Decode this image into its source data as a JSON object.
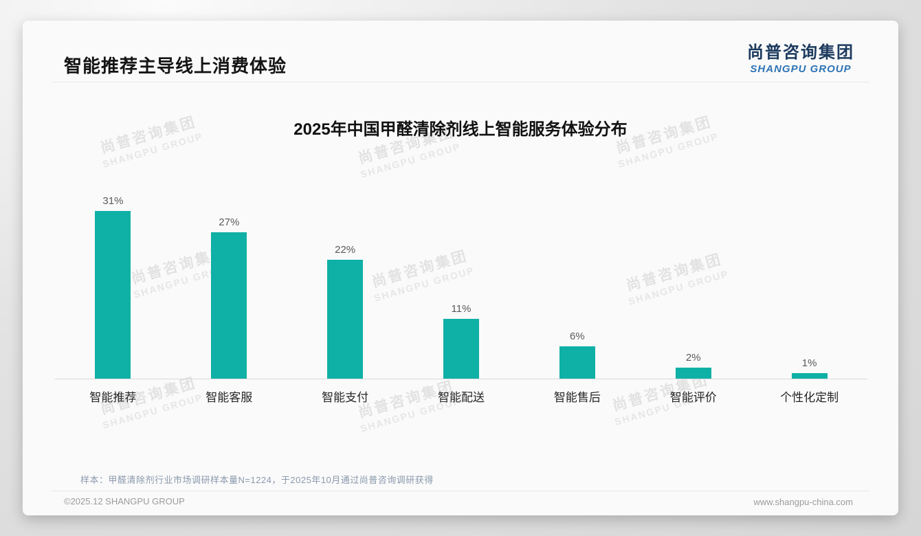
{
  "header": {
    "title": "智能推荐主导线上消费体验"
  },
  "logo": {
    "cn": "尚普咨询集团",
    "en": "SHANGPU GROUP"
  },
  "chart_data": {
    "type": "bar",
    "title": "2025年中国甲醛清除剂线上智能服务体验分布",
    "categories": [
      "智能推荐",
      "智能客服",
      "智能支付",
      "智能配送",
      "智能售后",
      "智能评价",
      "个性化定制"
    ],
    "values": [
      31,
      27,
      22,
      11,
      6,
      2,
      1
    ],
    "value_labels": [
      "31%",
      "27%",
      "22%",
      "11%",
      "6%",
      "2%",
      "1%"
    ],
    "bar_color": "#0fb0a6",
    "xlabel": "",
    "ylabel": "",
    "ylim": [
      0,
      33
    ],
    "grid": false,
    "legend": "none",
    "axis_line_color": "#d9d9d9"
  },
  "note": {
    "text": "样本：甲醛清除剂行业市场调研样本量N=1224，于2025年10月通过尚普咨询调研获得"
  },
  "footer": {
    "left": "©2025.12 SHANGPU GROUP",
    "right": "www.shangpu-china.com"
  },
  "watermark": {
    "cn": "尚普咨询集团",
    "en": "SHANGPU GROUP"
  },
  "colors": {
    "accent_teal": "#0fb0a6",
    "logo_navy": "#1c3a5e",
    "logo_blue": "#2e74b5",
    "note_gray_blue": "#8a99ad"
  }
}
